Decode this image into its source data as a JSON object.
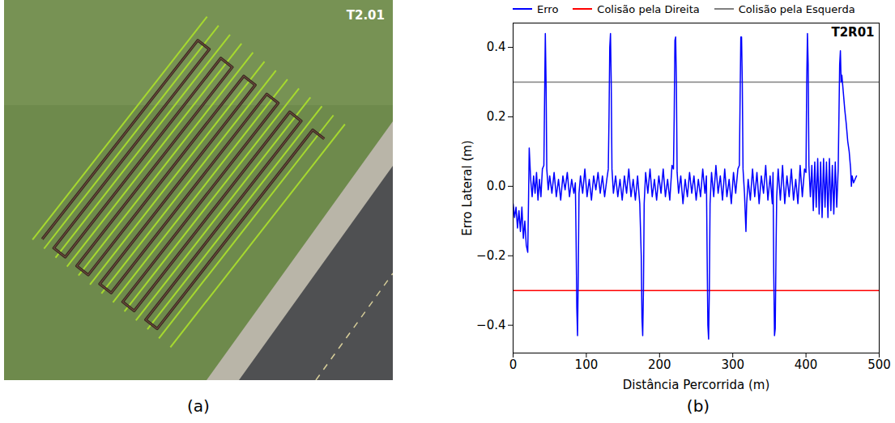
{
  "chart_data": {
    "type": "line",
    "title": "T2R01",
    "caption": "(b)",
    "x_label": "Distância Percorrida (m)",
    "y_label": "Erro Lateral (m)",
    "xlim": [
      0,
      500
    ],
    "xticks": [
      0,
      100,
      200,
      300,
      400,
      500
    ],
    "ylim": [
      -0.48,
      0.47
    ],
    "yticks": [
      {
        "value": -0.4,
        "label": "−0.4"
      },
      {
        "value": -0.2,
        "label": "−0.2"
      },
      {
        "value": 0,
        "label": "0.0"
      },
      0.2,
      0.4
    ],
    "grid": false,
    "legend": "top",
    "series": [
      {
        "name": "Erro",
        "color": "#0000ff",
        "x": [
          0,
          2,
          4,
          6,
          8,
          10,
          12,
          14,
          16,
          18,
          20,
          21,
          22,
          24,
          26,
          28,
          30,
          32,
          34,
          36,
          38,
          40,
          42,
          43,
          44,
          45,
          46,
          48,
          50,
          53,
          56,
          59,
          62,
          65,
          68,
          71,
          74,
          77,
          80,
          83,
          85,
          86,
          87,
          88,
          89,
          90,
          92,
          95,
          98,
          101,
          104,
          107,
          110,
          113,
          116,
          119,
          122,
          125,
          128,
          130,
          131,
          132,
          133,
          134,
          135,
          137,
          140,
          143,
          146,
          149,
          152,
          155,
          158,
          161,
          164,
          167,
          170,
          173,
          175,
          176,
          177,
          178,
          179,
          181,
          184,
          187,
          190,
          193,
          196,
          199,
          202,
          205,
          208,
          211,
          214,
          217,
          219,
          220,
          221,
          222,
          223,
          224,
          226,
          229,
          232,
          235,
          238,
          241,
          244,
          247,
          250,
          253,
          256,
          259,
          262,
          264,
          265,
          266,
          267,
          268,
          269,
          271,
          274,
          277,
          280,
          283,
          286,
          289,
          292,
          295,
          298,
          301,
          304,
          307,
          309,
          310,
          311,
          312,
          313,
          314,
          316,
          318,
          319,
          321,
          324,
          327,
          330,
          333,
          336,
          339,
          342,
          345,
          348,
          351,
          354,
          355,
          356,
          357,
          358,
          359,
          360,
          362,
          365,
          368,
          371,
          374,
          377,
          380,
          383,
          386,
          389,
          392,
          395,
          398,
          400,
          401,
          402,
          403,
          404,
          406,
          408,
          410,
          412,
          414,
          416,
          418,
          420,
          422,
          424,
          426,
          428,
          430,
          432,
          434,
          436,
          438,
          440,
          442,
          444,
          445,
          446,
          447,
          448,
          449,
          451,
          453,
          455,
          457,
          459,
          461,
          462,
          463,
          465,
          467,
          469
        ],
        "values": [
          -0.05,
          -0.09,
          -0.06,
          -0.12,
          -0.07,
          -0.13,
          -0.06,
          -0.15,
          -0.1,
          -0.17,
          -0.19,
          -0.05,
          0.11,
          0.02,
          -0.03,
          0.03,
          -0.02,
          0.04,
          -0.04,
          0.02,
          -0.03,
          0.05,
          0.06,
          0.25,
          0.44,
          0.3,
          0.05,
          -0.01,
          0.03,
          -0.02,
          0.04,
          -0.03,
          0.02,
          -0.04,
          0.03,
          -0.01,
          0.04,
          -0.03,
          0.02,
          -0.02,
          0.01,
          -0.15,
          -0.35,
          -0.43,
          -0.25,
          -0.02,
          0.03,
          -0.02,
          0.05,
          -0.03,
          0.02,
          -0.04,
          0.03,
          -0.01,
          0.04,
          -0.02,
          0.03,
          -0.03,
          0.02,
          0.05,
          0.2,
          0.4,
          0.44,
          0.3,
          0.05,
          -0.02,
          0.03,
          -0.03,
          0.02,
          -0.04,
          0.03,
          -0.02,
          0.05,
          -0.03,
          0.02,
          -0.04,
          0.03,
          -0.05,
          -0.2,
          -0.38,
          -0.43,
          -0.3,
          -0.05,
          0.04,
          -0.02,
          0.05,
          -0.03,
          0.02,
          -0.04,
          0.03,
          -0.02,
          0.05,
          -0.03,
          0.02,
          -0.04,
          0.06,
          0.05,
          0.2,
          0.42,
          0.43,
          0.3,
          0.04,
          -0.02,
          0.03,
          -0.05,
          0.02,
          -0.03,
          0.04,
          -0.02,
          0.03,
          -0.04,
          0.02,
          -0.03,
          0.05,
          -0.02,
          0.03,
          -0.2,
          -0.4,
          -0.44,
          -0.3,
          -0.05,
          0.04,
          -0.03,
          0.06,
          -0.02,
          0.03,
          -0.04,
          0.05,
          -0.03,
          0.02,
          -0.05,
          0.04,
          -0.02,
          0.05,
          0.06,
          0.25,
          0.43,
          0.43,
          0.3,
          0.05,
          -0.02,
          -0.13,
          -0.05,
          0.02,
          -0.04,
          0.05,
          -0.03,
          0.04,
          -0.05,
          0.03,
          -0.02,
          0.06,
          -0.04,
          0.03,
          -0.05,
          0.04,
          -0.25,
          -0.43,
          -0.41,
          -0.2,
          -0.03,
          0.05,
          -0.04,
          0.06,
          -0.05,
          0.03,
          -0.03,
          0.05,
          -0.04,
          0.02,
          -0.05,
          0.06,
          -0.03,
          0.05,
          0.04,
          0.3,
          0.44,
          0.35,
          0.06,
          -0.03,
          0.06,
          -0.07,
          0.07,
          -0.06,
          0.08,
          -0.08,
          0.07,
          -0.09,
          0.08,
          -0.06,
          0.07,
          -0.09,
          0.08,
          -0.07,
          0.06,
          -0.08,
          0.07,
          -0.06,
          0.05,
          0.2,
          0.35,
          0.39,
          0.3,
          0.32,
          0.27,
          0.22,
          0.18,
          0.13,
          0.1,
          0.05,
          0.0,
          0.03,
          0.01,
          0.02,
          0.03
        ]
      },
      {
        "name": "Colisão pela Direita",
        "color": "#ff0000",
        "x": [
          0,
          500
        ],
        "values": [
          -0.3,
          -0.3
        ]
      },
      {
        "name": "Colisão pela Esquerda",
        "color": "#808080",
        "x": [
          0,
          500
        ],
        "values": [
          0.3,
          0.3
        ]
      }
    ]
  },
  "panel_a": {
    "label": "T2.01",
    "caption": "(a)"
  }
}
